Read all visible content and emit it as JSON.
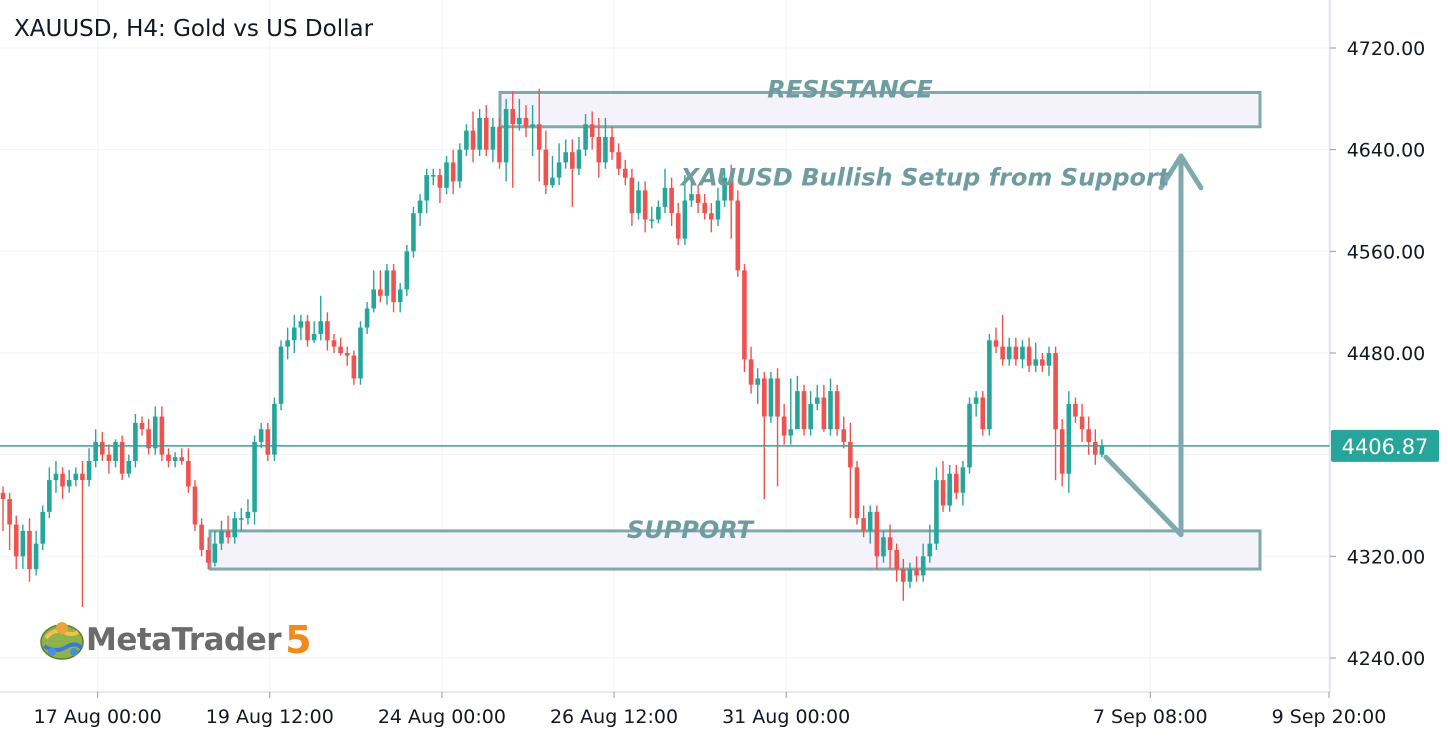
{
  "header": {
    "title": "XAUUSD, H4: Gold vs US Dollar"
  },
  "logo": {
    "brand": "MetaTrader",
    "version": "5",
    "icon": "metatrader-globe-icon"
  },
  "colors": {
    "bull": "#26a69a",
    "bear": "#ef5350",
    "annotation": "#7fa9ad",
    "zone_fill": "#f4f3fb",
    "price_line": "#26a69a",
    "grid": "#f0f3fa"
  },
  "chart_data": {
    "type": "candlestick",
    "symbol": "XAUUSD",
    "timeframe": "H4",
    "title": "XAUUSD, H4: Gold vs US Dollar",
    "ylim": [
      4215,
      4745
    ],
    "y_ticks": [
      "4720.00",
      "4640.00",
      "4560.00",
      "4480.00",
      "4320.00",
      "4240.00"
    ],
    "x_ticks": [
      "17 Aug 00:00",
      "19 Aug 12:00",
      "24 Aug 00:00",
      "26 Aug 12:00",
      "31 Aug 00:00",
      "7 Sep 08:00",
      "9 Sep 20:00"
    ],
    "x_tick_bars": [
      14,
      40,
      66,
      92,
      118,
      173,
      200
    ],
    "last_price": "4406.87",
    "last_price_value": 4406.87,
    "candles": [
      [
        4370,
        4365,
        4375,
        4340
      ],
      [
        4365,
        4345,
        4370,
        4325
      ],
      [
        4345,
        4320,
        4352,
        4310
      ],
      [
        4320,
        4340,
        4345,
        4310
      ],
      [
        4340,
        4310,
        4350,
        4300
      ],
      [
        4310,
        4330,
        4340,
        4305
      ],
      [
        4330,
        4355,
        4360,
        4325
      ],
      [
        4355,
        4380,
        4390,
        4350
      ],
      [
        4380,
        4385,
        4395,
        4370
      ],
      [
        4385,
        4375,
        4390,
        4365
      ],
      [
        4375,
        4380,
        4388,
        4370
      ],
      [
        4380,
        4385,
        4390,
        4375
      ],
      [
        4385,
        4380,
        4395,
        4280
      ],
      [
        4380,
        4395,
        4405,
        4375
      ],
      [
        4395,
        4410,
        4420,
        4390
      ],
      [
        4410,
        4400,
        4418,
        4395
      ],
      [
        4400,
        4395,
        4408,
        4385
      ],
      [
        4395,
        4410,
        4412,
        4390
      ],
      [
        4410,
        4385,
        4415,
        4380
      ],
      [
        4385,
        4395,
        4400,
        4382
      ],
      [
        4395,
        4425,
        4432,
        4390
      ],
      [
        4425,
        4420,
        4430,
        4415
      ],
      [
        4420,
        4405,
        4428,
        4400
      ],
      [
        4405,
        4430,
        4438,
        4400
      ],
      [
        4430,
        4400,
        4438,
        4395
      ],
      [
        4400,
        4395,
        4405,
        4390
      ],
      [
        4395,
        4398,
        4402,
        4390
      ],
      [
        4398,
        4395,
        4405,
        4392
      ],
      [
        4395,
        4375,
        4405,
        4370
      ],
      [
        4375,
        4345,
        4380,
        4340
      ],
      [
        4345,
        4325,
        4350,
        4320
      ],
      [
        4325,
        4315,
        4335,
        4310
      ],
      [
        4315,
        4330,
        4340,
        4312
      ],
      [
        4330,
        4340,
        4348,
        4325
      ],
      [
        4340,
        4335,
        4352,
        4330
      ],
      [
        4335,
        4350,
        4355,
        4330
      ],
      [
        4350,
        4350,
        4358,
        4340
      ],
      [
        4350,
        4355,
        4365,
        4345
      ],
      [
        4355,
        4410,
        4415,
        4345
      ],
      [
        4410,
        4420,
        4425,
        4405
      ],
      [
        4420,
        4400,
        4425,
        4395
      ],
      [
        4400,
        4440,
        4445,
        4395
      ],
      [
        4440,
        4485,
        4490,
        4435
      ],
      [
        4485,
        4490,
        4500,
        4475
      ],
      [
        4490,
        4500,
        4510,
        4480
      ],
      [
        4500,
        4505,
        4510,
        4490
      ],
      [
        4505,
        4490,
        4510,
        4485
      ],
      [
        4490,
        4495,
        4505,
        4488
      ],
      [
        4495,
        4505,
        4525,
        4490
      ],
      [
        4505,
        4490,
        4512,
        4482
      ],
      [
        4490,
        4485,
        4495,
        4480
      ],
      [
        4485,
        4480,
        4492,
        4478
      ],
      [
        4480,
        4478,
        4485,
        4470
      ],
      [
        4478,
        4460,
        4482,
        4455
      ],
      [
        4460,
        4500,
        4505,
        4455
      ],
      [
        4500,
        4515,
        4520,
        4495
      ],
      [
        4515,
        4530,
        4545,
        4512
      ],
      [
        4530,
        4525,
        4545,
        4520
      ],
      [
        4525,
        4545,
        4550,
        4518
      ],
      [
        4545,
        4520,
        4550,
        4512
      ],
      [
        4520,
        4530,
        4535,
        4512
      ],
      [
        4530,
        4560,
        4565,
        4525
      ],
      [
        4560,
        4590,
        4595,
        4555
      ],
      [
        4590,
        4600,
        4605,
        4580
      ],
      [
        4600,
        4620,
        4625,
        4590
      ],
      [
        4620,
        4620,
        4625,
        4612
      ],
      [
        4620,
        4610,
        4625,
        4598
      ],
      [
        4610,
        4630,
        4635,
        4605
      ],
      [
        4630,
        4615,
        4640,
        4605
      ],
      [
        4615,
        4640,
        4645,
        4610
      ],
      [
        4640,
        4655,
        4660,
        4635
      ],
      [
        4655,
        4640,
        4670,
        4630
      ],
      [
        4640,
        4665,
        4672,
        4635
      ],
      [
        4665,
        4640,
        4675,
        4635
      ],
      [
        4640,
        4658,
        4665,
        4630
      ],
      [
        4658,
        4630,
        4665,
        4625
      ],
      [
        4630,
        4672,
        4680,
        4615
      ],
      [
        4672,
        4660,
        4686,
        4610
      ],
      [
        4660,
        4665,
        4680,
        4655
      ],
      [
        4665,
        4658,
        4675,
        4650
      ],
      [
        4658,
        4660,
        4675,
        4635
      ],
      [
        4660,
        4640,
        4688,
        4615
      ],
      [
        4640,
        4612,
        4655,
        4605
      ],
      [
        4612,
        4618,
        4635,
        4610
      ],
      [
        4618,
        4630,
        4645,
        4612
      ],
      [
        4630,
        4638,
        4648,
        4625
      ],
      [
        4638,
        4625,
        4648,
        4595
      ],
      [
        4625,
        4640,
        4650,
        4620
      ],
      [
        4640,
        4660,
        4668,
        4635
      ],
      [
        4660,
        4650,
        4670,
        4640
      ],
      [
        4650,
        4630,
        4665,
        4618
      ],
      [
        4630,
        4650,
        4665,
        4625
      ],
      [
        4650,
        4638,
        4658,
        4632
      ],
      [
        4638,
        4625,
        4645,
        4620
      ],
      [
        4625,
        4618,
        4632,
        4612
      ],
      [
        4618,
        4590,
        4625,
        4580
      ],
      [
        4590,
        4608,
        4615,
        4585
      ],
      [
        4608,
        4585,
        4615,
        4575
      ],
      [
        4585,
        4585,
        4595,
        4578
      ],
      [
        4585,
        4595,
        4600,
        4582
      ],
      [
        4595,
        4610,
        4625,
        4590
      ],
      [
        4610,
        4590,
        4618,
        4580
      ],
      [
        4590,
        4570,
        4598,
        4565
      ],
      [
        4570,
        4600,
        4620,
        4565
      ],
      [
        4600,
        4605,
        4615,
        4595
      ],
      [
        4605,
        4598,
        4612,
        4590
      ],
      [
        4598,
        4590,
        4605,
        4585
      ],
      [
        4590,
        4585,
        4598,
        4575
      ],
      [
        4585,
        4600,
        4610,
        4580
      ],
      [
        4600,
        4618,
        4625,
        4595
      ],
      [
        4618,
        4600,
        4628,
        4570
      ],
      [
        4600,
        4545,
        4608,
        4540
      ],
      [
        4545,
        4475,
        4550,
        4465
      ],
      [
        4475,
        4455,
        4485,
        4448
      ],
      [
        4455,
        4460,
        4468,
        4440
      ],
      [
        4460,
        4430,
        4465,
        4365
      ],
      [
        4430,
        4460,
        4465,
        4425
      ],
      [
        4460,
        4430,
        4468,
        4375
      ],
      [
        4430,
        4415,
        4440,
        4408
      ],
      [
        4415,
        4420,
        4460,
        4408
      ],
      [
        4420,
        4450,
        4462,
        4440
      ],
      [
        4450,
        4420,
        4455,
        4415
      ],
      [
        4420,
        4440,
        4450,
        4415
      ],
      [
        4440,
        4445,
        4455,
        4435
      ],
      [
        4445,
        4420,
        4455,
        4418
      ],
      [
        4420,
        4450,
        4460,
        4415
      ],
      [
        4450,
        4420,
        4455,
        4415
      ],
      [
        4420,
        4410,
        4430,
        4405
      ],
      [
        4410,
        4390,
        4425,
        4350
      ],
      [
        4390,
        4350,
        4395,
        4345
      ],
      [
        4350,
        4340,
        4360,
        4335
      ],
      [
        4340,
        4355,
        4360,
        4330
      ],
      [
        4355,
        4320,
        4360,
        4310
      ],
      [
        4320,
        4335,
        4340,
        4315
      ],
      [
        4335,
        4325,
        4345,
        4310
      ],
      [
        4325,
        4310,
        4330,
        4300
      ],
      [
        4310,
        4300,
        4318,
        4285
      ],
      [
        4300,
        4310,
        4315,
        4295
      ],
      [
        4310,
        4305,
        4320,
        4300
      ],
      [
        4305,
        4320,
        4330,
        4300
      ],
      [
        4320,
        4330,
        4345,
        4315
      ],
      [
        4330,
        4380,
        4390,
        4325
      ],
      [
        4380,
        4360,
        4395,
        4355
      ],
      [
        4360,
        4385,
        4392,
        4355
      ],
      [
        4385,
        4370,
        4392,
        4365
      ],
      [
        4370,
        4390,
        4395,
        4360
      ],
      [
        4390,
        4440,
        4445,
        4385
      ],
      [
        4440,
        4445,
        4450,
        4430
      ],
      [
        4445,
        4420,
        4450,
        4415
      ],
      [
        4420,
        4490,
        4495,
        4415
      ],
      [
        4490,
        4485,
        4500,
        4480
      ],
      [
        4485,
        4475,
        4510,
        4470
      ],
      [
        4475,
        4485,
        4492,
        4470
      ],
      [
        4485,
        4475,
        4492,
        4470
      ],
      [
        4475,
        4485,
        4490,
        4468
      ],
      [
        4485,
        4470,
        4492,
        4465
      ],
      [
        4470,
        4475,
        4488,
        4465
      ],
      [
        4475,
        4470,
        4480,
        4465
      ],
      [
        4470,
        4480,
        4485,
        4462
      ],
      [
        4480,
        4420,
        4485,
        4380
      ],
      [
        4420,
        4385,
        4428,
        4375
      ],
      [
        4385,
        4440,
        4450,
        4370
      ],
      [
        4440,
        4430,
        4445,
        4425
      ],
      [
        4430,
        4420,
        4440,
        4410
      ],
      [
        4420,
        4410,
        4430,
        4400
      ],
      [
        4410,
        4400,
        4420,
        4392
      ],
      [
        4400,
        4407,
        4412,
        4398
      ]
    ],
    "annotations": {
      "resistance": {
        "label": "RESISTANCE",
        "from": 4658,
        "to": 4685
      },
      "support": {
        "label": "SUPPORT",
        "from": 4310,
        "to": 4340
      },
      "setup_text": "XAUUSD Bullish Setup from Support"
    }
  }
}
